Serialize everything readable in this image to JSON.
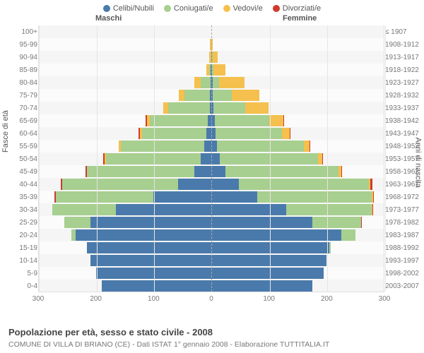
{
  "type": "population_pyramid",
  "legend": [
    {
      "label": "Celibi/Nubili",
      "color": "#4a7aab"
    },
    {
      "label": "Coniugati/e",
      "color": "#a7cf8f"
    },
    {
      "label": "Vedovi/e",
      "color": "#f5c04d"
    },
    {
      "label": "Divorziati/e",
      "color": "#cf3a2d"
    }
  ],
  "header_male": "Maschi",
  "header_female": "Femmine",
  "ylabel_left": "Fasce di età",
  "ylabel_right": "Anni di nascita",
  "title": "Popolazione per età, sesso e stato civile - 2008",
  "subtitle": "COMUNE DI VILLA DI BRIANO (CE) - Dati ISTAT 1° gennaio 2008 - Elaborazione TUTTITALIA.IT",
  "xmax": 300,
  "xticks": [
    300,
    200,
    100,
    0,
    100,
    200,
    300
  ],
  "series_colors": {
    "single": "#4a7aab",
    "married": "#a7cf8f",
    "widowed": "#f5c04d",
    "divorced": "#cf3a2d"
  },
  "chart_style": {
    "background": "#f5f5f5",
    "row_alt_background": "rgba(255,255,255,0.55)",
    "grid_color": "#e5e5e5",
    "center_line_color": "#aaaaaa",
    "tick_color": "#777777",
    "label_fontsize": 10,
    "legend_fontsize": 11,
    "title_fontsize": 13,
    "subtitle_fontsize": 10.5
  },
  "rows": [
    {
      "age": "100+",
      "year": "≤ 1907",
      "m": [
        0,
        0,
        0,
        0
      ],
      "f": [
        0,
        0,
        0,
        0
      ]
    },
    {
      "age": "95-99",
      "year": "1908-1912",
      "m": [
        0,
        0,
        2,
        0
      ],
      "f": [
        0,
        0,
        2,
        0
      ]
    },
    {
      "age": "90-94",
      "year": "1913-1917",
      "m": [
        0,
        0,
        4,
        0
      ],
      "f": [
        1,
        1,
        9,
        0
      ]
    },
    {
      "age": "85-89",
      "year": "1918-1922",
      "m": [
        1,
        3,
        5,
        0
      ],
      "f": [
        1,
        3,
        20,
        0
      ]
    },
    {
      "age": "80-84",
      "year": "1923-1927",
      "m": [
        1,
        18,
        10,
        0
      ],
      "f": [
        2,
        12,
        44,
        0
      ]
    },
    {
      "age": "75-79",
      "year": "1928-1932",
      "m": [
        2,
        44,
        10,
        0
      ],
      "f": [
        3,
        32,
        48,
        0
      ]
    },
    {
      "age": "70-74",
      "year": "1933-1937",
      "m": [
        3,
        72,
        8,
        0
      ],
      "f": [
        4,
        55,
        40,
        0
      ]
    },
    {
      "age": "65-69",
      "year": "1938-1942",
      "m": [
        6,
        100,
        6,
        2
      ],
      "f": [
        6,
        95,
        24,
        1
      ]
    },
    {
      "age": "60-64",
      "year": "1943-1947",
      "m": [
        8,
        112,
        4,
        2
      ],
      "f": [
        7,
        115,
        14,
        1
      ]
    },
    {
      "age": "55-59",
      "year": "1948-1952",
      "m": [
        12,
        145,
        3,
        1
      ],
      "f": [
        10,
        150,
        10,
        1
      ]
    },
    {
      "age": "50-54",
      "year": "1953-1957",
      "m": [
        18,
        165,
        2,
        2
      ],
      "f": [
        15,
        170,
        7,
        1
      ]
    },
    {
      "age": "45-49",
      "year": "1958-1962",
      "m": [
        30,
        185,
        1,
        2
      ],
      "f": [
        25,
        195,
        5,
        2
      ]
    },
    {
      "age": "40-44",
      "year": "1963-1967",
      "m": [
        58,
        200,
        1,
        2
      ],
      "f": [
        48,
        225,
        3,
        3
      ]
    },
    {
      "age": "35-39",
      "year": "1968-1972",
      "m": [
        100,
        170,
        0,
        2
      ],
      "f": [
        80,
        198,
        2,
        2
      ]
    },
    {
      "age": "30-34",
      "year": "1973-1977",
      "m": [
        165,
        110,
        0,
        1
      ],
      "f": [
        130,
        148,
        1,
        2
      ]
    },
    {
      "age": "25-29",
      "year": "1978-1982",
      "m": [
        210,
        45,
        0,
        0
      ],
      "f": [
        175,
        85,
        0,
        1
      ]
    },
    {
      "age": "20-24",
      "year": "1983-1987",
      "m": [
        235,
        8,
        0,
        0
      ],
      "f": [
        225,
        25,
        0,
        0
      ]
    },
    {
      "age": "15-19",
      "year": "1988-1992",
      "m": [
        215,
        0,
        0,
        0
      ],
      "f": [
        205,
        2,
        0,
        0
      ]
    },
    {
      "age": "10-14",
      "year": "1993-1997",
      "m": [
        210,
        0,
        0,
        0
      ],
      "f": [
        200,
        0,
        0,
        0
      ]
    },
    {
      "age": "5-9",
      "year": "1998-2002",
      "m": [
        200,
        0,
        0,
        0
      ],
      "f": [
        195,
        0,
        0,
        0
      ]
    },
    {
      "age": "0-4",
      "year": "2003-2007",
      "m": [
        190,
        0,
        0,
        0
      ],
      "f": [
        175,
        0,
        0,
        0
      ]
    }
  ]
}
